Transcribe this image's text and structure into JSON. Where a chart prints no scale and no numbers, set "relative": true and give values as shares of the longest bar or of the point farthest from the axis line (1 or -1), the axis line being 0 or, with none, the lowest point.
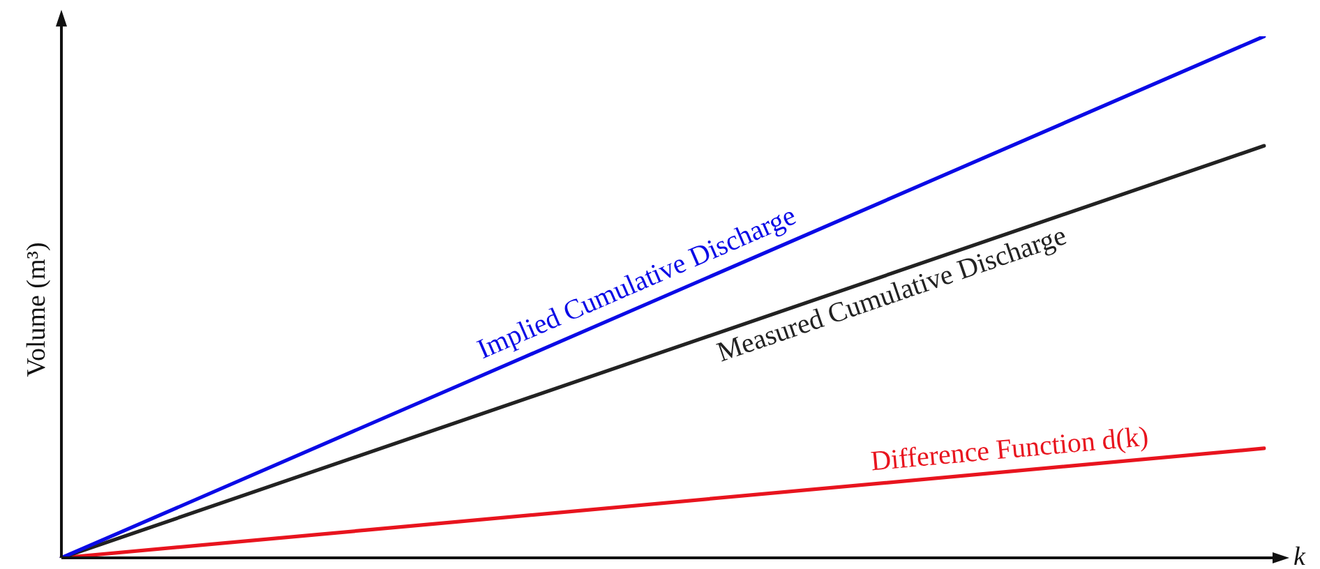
{
  "chart_data": {
    "type": "line",
    "relative": true,
    "marker": "none",
    "legend": false,
    "xlabel": "k",
    "ylabel": "Volume (m³)",
    "categories": [
      null,
      null
    ],
    "series": [
      {
        "name": "Implied Cumulative Discharge",
        "color": "#0a0ae6",
        "values": [
          0,
          1
        ]
      },
      {
        "name": "Measured Cumulative Discharge",
        "color": "#222222",
        "values": [
          0,
          0.79
        ]
      },
      {
        "name": "Difference Function d(k)",
        "color": "#e8141e",
        "values": [
          0,
          0.21
        ]
      }
    ]
  }
}
